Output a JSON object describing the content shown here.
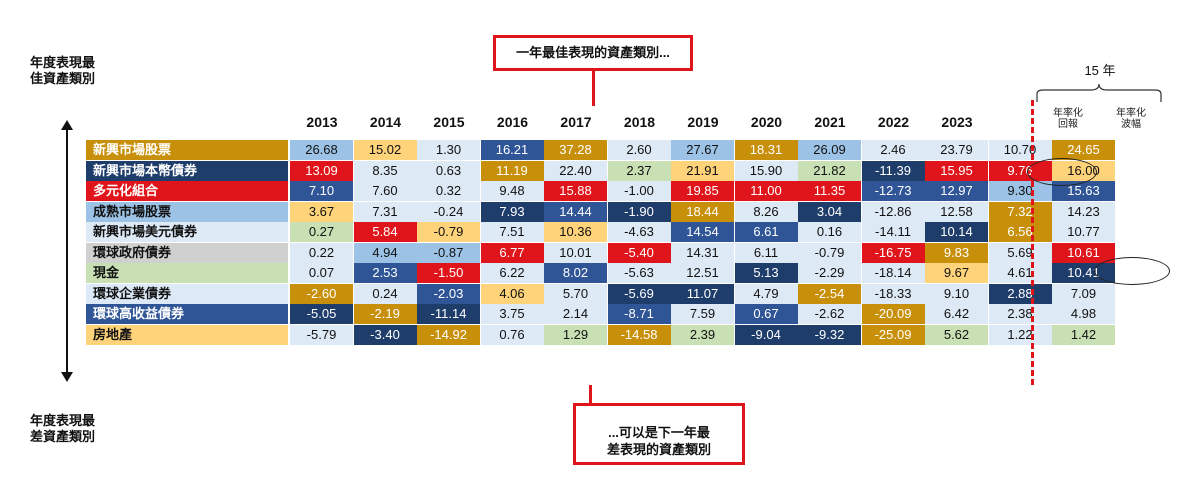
{
  "labels": {
    "best_side": [
      "年度表現最",
      "佳資產類別"
    ],
    "worst_side": [
      "年度表現最",
      "差資產類別"
    ],
    "callout_top": "一年最佳表現的資產類別...",
    "callout_bottom": [
      "...可以是下一年最",
      "差表現的資產類別"
    ],
    "span_years": "15 年",
    "annual_return": [
      "年率化",
      "回報"
    ],
    "annual_vol": [
      "年率化",
      "波幅"
    ]
  },
  "colors": {
    "emerging_equity": "#c8900a",
    "em_local_bond": "#1f3d6b",
    "multi_asset": "#e0151b",
    "developed_equity": "#9cc3e6",
    "em_usd_bond": "#dde9f5",
    "global_gov_bond": "#d0d0d0",
    "cash": "#c8e0b4",
    "global_corp_bond": "#dce9f7",
    "global_hy_bond": "#2f5597",
    "real_estate": "#ffd37a",
    "accent_red": "#e0151b"
  },
  "chart_data": {
    "type": "table",
    "columns": [
      "2013",
      "2014",
      "2015",
      "2016",
      "2017",
      "2018",
      "2019",
      "2020",
      "2021",
      "2022",
      "2023"
    ],
    "assets": [
      {
        "key": "emerging_equity",
        "name": "新興市場股票",
        "bg": "#c8900a",
        "fg": "#ffffff"
      },
      {
        "key": "em_local_bond",
        "name": "新興市場本幣債券",
        "bg": "#1f3d6b",
        "fg": "#ffffff"
      },
      {
        "key": "multi_asset",
        "name": "多元化組合",
        "bg": "#e0151b",
        "fg": "#ffffff"
      },
      {
        "key": "developed_equity",
        "name": "成熟市場股票",
        "bg": "#9cc3e6",
        "fg": "#111111"
      },
      {
        "key": "em_usd_bond",
        "name": "新興市場美元債券",
        "bg": "#dde9f5",
        "fg": "#111111"
      },
      {
        "key": "global_gov_bond",
        "name": "環球政府債券",
        "bg": "#d0d0d0",
        "fg": "#111111"
      },
      {
        "key": "cash",
        "name": "現金",
        "bg": "#c8e0b4",
        "fg": "#111111"
      },
      {
        "key": "global_corp_bond",
        "name": "環球企業債券",
        "bg": "#dce9f7",
        "fg": "#111111"
      },
      {
        "key": "global_hy_bond",
        "name": "環球高收益債券",
        "bg": "#2f5597",
        "fg": "#ffffff"
      },
      {
        "key": "real_estate",
        "name": "房地產",
        "bg": "#ffd37a",
        "fg": "#111111"
      }
    ],
    "cells": [
      [
        [
          "26.68",
          "developed_equity"
        ],
        [
          "15.02",
          "real_estate"
        ],
        [
          "1.30",
          "em_usd_bond"
        ],
        [
          "16.21",
          "global_hy_bond"
        ],
        [
          "37.28",
          "emerging_equity"
        ],
        [
          "2.60",
          "em_usd_bond"
        ],
        [
          "27.67",
          "developed_equity"
        ],
        [
          "18.31",
          "emerging_equity"
        ],
        [
          "26.09",
          "developed_equity"
        ],
        [
          "2.46",
          "em_usd_bond"
        ],
        [
          "23.79",
          "em_usd_bond"
        ],
        [
          "10.70",
          "em_usd_bond"
        ],
        [
          "24.65",
          "emerging_equity"
        ]
      ],
      [
        [
          "13.09",
          "multi_asset"
        ],
        [
          "8.35",
          "em_usd_bond"
        ],
        [
          "0.63",
          "em_usd_bond"
        ],
        [
          "11.19",
          "emerging_equity"
        ],
        [
          "22.40",
          "em_usd_bond"
        ],
        [
          "2.37",
          "cash"
        ],
        [
          "21.91",
          "real_estate"
        ],
        [
          "15.90",
          "em_usd_bond"
        ],
        [
          "21.82",
          "cash"
        ],
        [
          "-11.39",
          "em_local_bond"
        ],
        [
          "15.95",
          "multi_asset"
        ],
        [
          "9.76",
          "multi_asset"
        ],
        [
          "16.00",
          "real_estate"
        ]
      ],
      [
        [
          "7.10",
          "global_hy_bond"
        ],
        [
          "7.60",
          "em_usd_bond"
        ],
        [
          "0.32",
          "em_usd_bond"
        ],
        [
          "9.48",
          "em_usd_bond"
        ],
        [
          "15.88",
          "multi_asset"
        ],
        [
          "-1.00",
          "em_usd_bond"
        ],
        [
          "19.85",
          "multi_asset"
        ],
        [
          "11.00",
          "multi_asset"
        ],
        [
          "11.35",
          "multi_asset"
        ],
        [
          "-12.73",
          "global_hy_bond"
        ],
        [
          "12.97",
          "global_hy_bond"
        ],
        [
          "9.30",
          "developed_equity"
        ],
        [
          "15.63",
          "global_hy_bond"
        ]
      ],
      [
        [
          "3.67",
          "real_estate"
        ],
        [
          "7.31",
          "em_usd_bond"
        ],
        [
          "-0.24",
          "em_usd_bond"
        ],
        [
          "7.93",
          "em_local_bond"
        ],
        [
          "14.44",
          "global_hy_bond"
        ],
        [
          "-1.90",
          "em_local_bond"
        ],
        [
          "18.44",
          "emerging_equity"
        ],
        [
          "8.26",
          "em_usd_bond"
        ],
        [
          "3.04",
          "em_local_bond"
        ],
        [
          "-12.86",
          "em_usd_bond"
        ],
        [
          "12.58",
          "em_usd_bond"
        ],
        [
          "7.32",
          "emerging_equity"
        ],
        [
          "14.23",
          "em_usd_bond"
        ]
      ],
      [
        [
          "0.27",
          "cash"
        ],
        [
          "5.84",
          "multi_asset"
        ],
        [
          "-0.79",
          "real_estate"
        ],
        [
          "7.51",
          "em_usd_bond"
        ],
        [
          "10.36",
          "real_estate"
        ],
        [
          "-4.63",
          "em_usd_bond"
        ],
        [
          "14.54",
          "global_hy_bond"
        ],
        [
          "6.61",
          "global_hy_bond"
        ],
        [
          "0.16",
          "em_usd_bond"
        ],
        [
          "-14.11",
          "em_usd_bond"
        ],
        [
          "10.14",
          "em_local_bond"
        ],
        [
          "6.56",
          "emerging_equity"
        ],
        [
          "10.77",
          "em_usd_bond"
        ]
      ],
      [
        [
          "0.22",
          "em_usd_bond"
        ],
        [
          "4.94",
          "developed_equity"
        ],
        [
          "-0.87",
          "developed_equity"
        ],
        [
          "6.77",
          "multi_asset"
        ],
        [
          "10.01",
          "em_usd_bond"
        ],
        [
          "-5.40",
          "multi_asset"
        ],
        [
          "14.31",
          "em_usd_bond"
        ],
        [
          "6.11",
          "em_usd_bond"
        ],
        [
          "-0.79",
          "em_usd_bond"
        ],
        [
          "-16.75",
          "multi_asset"
        ],
        [
          "9.83",
          "emerging_equity"
        ],
        [
          "5.69",
          "em_usd_bond"
        ],
        [
          "10.61",
          "multi_asset"
        ]
      ],
      [
        [
          "0.07",
          "em_usd_bond"
        ],
        [
          "2.53",
          "global_hy_bond"
        ],
        [
          "-1.50",
          "multi_asset"
        ],
        [
          "6.22",
          "em_usd_bond"
        ],
        [
          "8.02",
          "global_hy_bond"
        ],
        [
          "-5.63",
          "em_usd_bond"
        ],
        [
          "12.51",
          "em_usd_bond"
        ],
        [
          "5.13",
          "em_local_bond"
        ],
        [
          "-2.29",
          "em_usd_bond"
        ],
        [
          "-18.14",
          "em_usd_bond"
        ],
        [
          "9.67",
          "real_estate"
        ],
        [
          "4.61",
          "em_usd_bond"
        ],
        [
          "10.41",
          "em_local_bond"
        ]
      ],
      [
        [
          "-2.60",
          "emerging_equity"
        ],
        [
          "0.24",
          "em_usd_bond"
        ],
        [
          "-2.03",
          "global_hy_bond"
        ],
        [
          "4.06",
          "real_estate"
        ],
        [
          "5.70",
          "em_usd_bond"
        ],
        [
          "-5.69",
          "em_local_bond"
        ],
        [
          "11.07",
          "em_local_bond"
        ],
        [
          "4.79",
          "em_usd_bond"
        ],
        [
          "-2.54",
          "emerging_equity"
        ],
        [
          "-18.33",
          "em_usd_bond"
        ],
        [
          "9.10",
          "em_usd_bond"
        ],
        [
          "2.88",
          "em_local_bond"
        ],
        [
          "7.09",
          "em_usd_bond"
        ]
      ],
      [
        [
          "-5.05",
          "em_local_bond"
        ],
        [
          "-2.19",
          "emerging_equity"
        ],
        [
          "-11.14",
          "em_local_bond"
        ],
        [
          "3.75",
          "em_usd_bond"
        ],
        [
          "2.14",
          "em_usd_bond"
        ],
        [
          "-8.71",
          "global_hy_bond"
        ],
        [
          "7.59",
          "em_usd_bond"
        ],
        [
          "0.67",
          "global_hy_bond"
        ],
        [
          "-2.62",
          "em_usd_bond"
        ],
        [
          "-20.09",
          "emerging_equity"
        ],
        [
          "6.42",
          "em_usd_bond"
        ],
        [
          "2.38",
          "em_usd_bond"
        ],
        [
          "4.98",
          "em_usd_bond"
        ]
      ],
      [
        [
          "-5.79",
          "em_usd_bond"
        ],
        [
          "-3.40",
          "em_local_bond"
        ],
        [
          "-14.92",
          "emerging_equity"
        ],
        [
          "0.76",
          "em_usd_bond"
        ],
        [
          "1.29",
          "cash"
        ],
        [
          "-14.58",
          "emerging_equity"
        ],
        [
          "2.39",
          "cash"
        ],
        [
          "-9.04",
          "em_local_bond"
        ],
        [
          "-9.32",
          "em_local_bond"
        ],
        [
          "-25.09",
          "emerging_equity"
        ],
        [
          "5.62",
          "cash"
        ],
        [
          "1.22",
          "em_usd_bond"
        ],
        [
          "1.42",
          "cash"
        ]
      ]
    ],
    "highlighted": [
      "9.76",
      "10.61"
    ]
  }
}
